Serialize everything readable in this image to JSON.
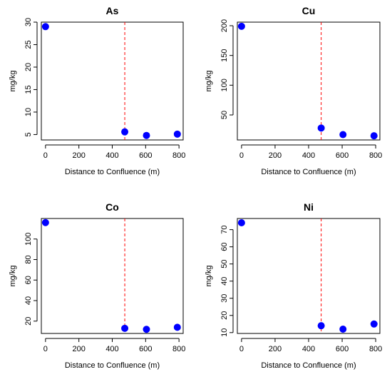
{
  "colors": {
    "points": "#0000ff",
    "reference_line": "#ff0000",
    "axes": "#000000"
  },
  "chart_data": [
    {
      "type": "scatter",
      "title": "As",
      "xlabel": "Distance to Confluence (m)",
      "ylabel": "mg/kg",
      "x": [
        0,
        475,
        605,
        790
      ],
      "y": [
        29.0,
        5.6,
        4.8,
        5.1
      ],
      "xlim": [
        -25,
        825
      ],
      "ylim": [
        3.8,
        30
      ],
      "xticks": [
        0,
        200,
        400,
        600,
        800
      ],
      "yticks": [
        5,
        10,
        15,
        20,
        25,
        30
      ],
      "vline": 475,
      "grid": false
    },
    {
      "type": "scatter",
      "title": "Cu",
      "xlabel": "Distance to Confluence (m)",
      "ylabel": "mg/kg",
      "x": [
        0,
        475,
        605,
        790
      ],
      "y": [
        199,
        28,
        17,
        15
      ],
      "xlim": [
        -25,
        825
      ],
      "ylim": [
        8,
        206
      ],
      "xticks": [
        0,
        200,
        400,
        600,
        800
      ],
      "yticks": [
        50,
        100,
        150,
        200
      ],
      "vline": 475,
      "grid": false
    },
    {
      "type": "scatter",
      "title": "Co",
      "xlabel": "Distance to Confluence (m)",
      "ylabel": "mg/kg",
      "x": [
        0,
        475,
        605,
        790
      ],
      "y": [
        116,
        13,
        12,
        14
      ],
      "xlim": [
        -25,
        825
      ],
      "ylim": [
        8,
        120
      ],
      "xticks": [
        0,
        200,
        400,
        600,
        800
      ],
      "yticks": [
        20,
        40,
        60,
        80,
        100
      ],
      "vline": 475,
      "grid": false
    },
    {
      "type": "scatter",
      "title": "Ni",
      "xlabel": "Distance to Confluence (m)",
      "ylabel": "mg/kg",
      "x": [
        0,
        475,
        605,
        790
      ],
      "y": [
        74,
        14,
        12,
        15
      ],
      "xlim": [
        -25,
        825
      ],
      "ylim": [
        9.5,
        76.5
      ],
      "xticks": [
        0,
        200,
        400,
        600,
        800
      ],
      "yticks": [
        10,
        20,
        30,
        40,
        50,
        60,
        70
      ],
      "vline": 475,
      "grid": false
    }
  ]
}
